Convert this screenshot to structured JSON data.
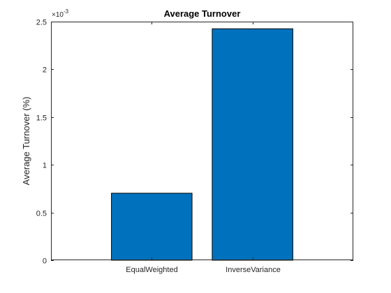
{
  "chart_data": {
    "type": "bar",
    "title": "Average Turnover",
    "xlabel": "",
    "ylabel": "Average Turnover (%)",
    "categories": [
      "EqualWeighted",
      "InverseVariance"
    ],
    "values": [
      0.000702,
      0.002425
    ],
    "ylim": [
      0,
      0.0025
    ],
    "yticks": [
      0,
      0.0005,
      0.001,
      0.0015,
      0.002,
      0.0025
    ],
    "ytick_labels": [
      "0",
      "0.5",
      "1",
      "1.5",
      "2",
      "2.5"
    ],
    "y_exponent_label": {
      "base": "×10",
      "exponent": "-3"
    },
    "bar_color": "#0072BD",
    "grid": false,
    "legend": "none"
  }
}
